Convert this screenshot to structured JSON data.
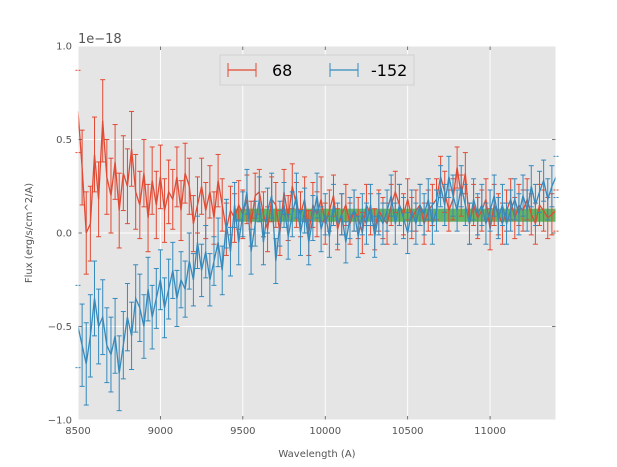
{
  "chart_data": {
    "type": "line",
    "title": "",
    "xlabel": "Wavelength (A)",
    "ylabel": "Flux (erg/s/cm^2/A)",
    "y_offset_label": "1e−18",
    "xlim": [
      8500,
      11400
    ],
    "ylim": [
      -1.0,
      1.0
    ],
    "x_ticks": [
      8500,
      9000,
      9500,
      10000,
      10500,
      11000
    ],
    "x_tick_labels": [
      "8500",
      "9000",
      "9500",
      "10000",
      "10500",
      "11000"
    ],
    "y_ticks": [
      -1.0,
      -0.5,
      0.0,
      0.5,
      1.0
    ],
    "y_tick_labels": [
      "−1.0",
      "−0.5",
      "0.0",
      "0.5",
      "1.0"
    ],
    "grid": true,
    "legend_position": "top-center",
    "band": {
      "x_range": [
        9450,
        11400
      ],
      "y_range": [
        0.06,
        0.13
      ],
      "color": "#2ca02c"
    },
    "series": [
      {
        "name": "68",
        "color": "#e24a33",
        "x": [
          8500,
          8525,
          8550,
          8575,
          8600,
          8625,
          8650,
          8675,
          8700,
          8725,
          8750,
          8775,
          8800,
          8825,
          8850,
          8875,
          8900,
          8925,
          8950,
          8975,
          9000,
          9025,
          9050,
          9075,
          9100,
          9125,
          9150,
          9175,
          9200,
          9225,
          9250,
          9275,
          9300,
          9325,
          9350,
          9375,
          9400,
          9425,
          9450,
          9475,
          9500,
          9525,
          9550,
          9575,
          9600,
          9625,
          9650,
          9675,
          9700,
          9725,
          9750,
          9775,
          9800,
          9825,
          9850,
          9875,
          9900,
          9925,
          9950,
          9975,
          10000,
          10025,
          10050,
          10075,
          10100,
          10125,
          10150,
          10175,
          10200,
          10225,
          10250,
          10275,
          10300,
          10325,
          10350,
          10375,
          10400,
          10425,
          10450,
          10475,
          10500,
          10525,
          10550,
          10575,
          10600,
          10625,
          10650,
          10675,
          10700,
          10725,
          10750,
          10775,
          10800,
          10825,
          10850,
          10875,
          10900,
          10925,
          10950,
          10975,
          11000,
          11025,
          11050,
          11075,
          11100,
          11125,
          11150,
          11175,
          11200,
          11225,
          11250,
          11275,
          11300,
          11325,
          11350,
          11375,
          11400
        ],
        "values": [
          0.65,
          0.35,
          0.0,
          0.05,
          0.42,
          0.18,
          0.6,
          0.3,
          0.2,
          0.38,
          0.12,
          0.32,
          0.25,
          0.45,
          0.22,
          0.15,
          0.32,
          0.08,
          0.28,
          0.15,
          0.3,
          0.12,
          0.22,
          0.18,
          0.3,
          0.12,
          0.32,
          0.25,
          0.05,
          0.15,
          0.25,
          0.12,
          0.22,
          0.08,
          0.28,
          0.15,
          0.02,
          0.12,
          0.08,
          0.15,
          0.1,
          0.18,
          0.05,
          0.2,
          0.22,
          0.1,
          0.02,
          0.18,
          0.15,
          0.0,
          0.22,
          0.08,
          0.25,
          0.15,
          0.1,
          0.18,
          0.0,
          0.15,
          0.1,
          0.18,
          0.05,
          0.12,
          0.2,
          0.02,
          0.1,
          0.15,
          0.05,
          0.12,
          0.08,
          0.0,
          0.15,
          0.1,
          0.02,
          0.12,
          0.08,
          0.05,
          0.15,
          0.22,
          0.15,
          0.1,
          0.18,
          0.08,
          0.12,
          0.15,
          0.05,
          0.12,
          0.15,
          0.18,
          0.3,
          0.22,
          0.12,
          0.18,
          0.35,
          0.2,
          0.32,
          0.05,
          0.15,
          0.08,
          0.12,
          0.18,
          0.02,
          0.15,
          0.1,
          0.05,
          0.12,
          0.18,
          0.08,
          0.15,
          0.12,
          0.18,
          0.1,
          0.05,
          0.15,
          0.12,
          0.08,
          0.1,
          0.12
        ],
        "errors": [
          0.22,
          0.2,
          0.22,
          0.2,
          0.2,
          0.2,
          0.22,
          0.2,
          0.2,
          0.2,
          0.2,
          0.2,
          0.2,
          0.2,
          0.2,
          0.18,
          0.18,
          0.18,
          0.18,
          0.18,
          0.17,
          0.17,
          0.17,
          0.16,
          0.16,
          0.16,
          0.16,
          0.15,
          0.15,
          0.15,
          0.15,
          0.15,
          0.14,
          0.14,
          0.14,
          0.14,
          0.14,
          0.13,
          0.13,
          0.13,
          0.13,
          0.13,
          0.12,
          0.12,
          0.12,
          0.12,
          0.12,
          0.12,
          0.12,
          0.12,
          0.12,
          0.12,
          0.12,
          0.12,
          0.12,
          0.12,
          0.12,
          0.12,
          0.12,
          0.12,
          0.11,
          0.11,
          0.11,
          0.11,
          0.11,
          0.11,
          0.11,
          0.11,
          0.11,
          0.11,
          0.11,
          0.11,
          0.11,
          0.11,
          0.11,
          0.11,
          0.11,
          0.11,
          0.11,
          0.11,
          0.11,
          0.11,
          0.11,
          0.11,
          0.11,
          0.11,
          0.11,
          0.11,
          0.11,
          0.11,
          0.11,
          0.11,
          0.11,
          0.11,
          0.11,
          0.11,
          0.11,
          0.11,
          0.11,
          0.11,
          0.11,
          0.11,
          0.11,
          0.11,
          0.11,
          0.11,
          0.11,
          0.11,
          0.11,
          0.11,
          0.11,
          0.11,
          0.11,
          0.11,
          0.11,
          0.11,
          0.11
        ]
      },
      {
        "name": "-152",
        "color": "#348abd",
        "x": [
          8500,
          8525,
          8550,
          8575,
          8600,
          8625,
          8650,
          8675,
          8700,
          8725,
          8750,
          8775,
          8800,
          8825,
          8850,
          8875,
          8900,
          8925,
          8950,
          8975,
          9000,
          9025,
          9050,
          9075,
          9100,
          9125,
          9150,
          9175,
          9200,
          9225,
          9250,
          9275,
          9300,
          9325,
          9350,
          9375,
          9400,
          9425,
          9450,
          9475,
          9500,
          9525,
          9550,
          9575,
          9600,
          9625,
          9650,
          9675,
          9700,
          9725,
          9750,
          9775,
          9800,
          9825,
          9850,
          9875,
          9900,
          9925,
          9950,
          9975,
          10000,
          10025,
          10050,
          10075,
          10100,
          10125,
          10150,
          10175,
          10200,
          10225,
          10250,
          10275,
          10300,
          10325,
          10350,
          10375,
          10400,
          10425,
          10450,
          10475,
          10500,
          10525,
          10550,
          10575,
          10600,
          10625,
          10650,
          10675,
          10700,
          10725,
          10750,
          10775,
          10800,
          10825,
          10850,
          10875,
          10900,
          10925,
          10950,
          10975,
          11000,
          11025,
          11050,
          11075,
          11100,
          11125,
          11150,
          11175,
          11200,
          11225,
          11250,
          11275,
          11300,
          11325,
          11350,
          11375,
          11400
        ],
        "values": [
          -0.5,
          -0.6,
          -0.7,
          -0.55,
          -0.35,
          -0.5,
          -0.45,
          -0.6,
          -0.65,
          -0.55,
          -0.75,
          -0.6,
          -0.45,
          -0.55,
          -0.35,
          -0.4,
          -0.5,
          -0.3,
          -0.45,
          -0.35,
          -0.25,
          -0.4,
          -0.3,
          -0.2,
          -0.35,
          -0.25,
          -0.3,
          -0.15,
          -0.25,
          -0.05,
          -0.2,
          -0.1,
          -0.25,
          -0.15,
          -0.05,
          -0.2,
          0.05,
          -0.1,
          0.15,
          -0.05,
          0.1,
          0.22,
          -0.1,
          0.05,
          0.18,
          -0.05,
          0.12,
          0.2,
          -0.15,
          0.05,
          0.15,
          -0.02,
          0.1,
          0.2,
          0.0,
          0.12,
          -0.05,
          0.08,
          0.2,
          0.02,
          0.1,
          -0.02,
          0.15,
          0.05,
          0.1,
          -0.05,
          0.08,
          0.12,
          -0.02,
          0.1,
          0.05,
          0.15,
          -0.02,
          0.1,
          0.05,
          0.12,
          0.2,
          0.05,
          0.15,
          0.08,
          0.0,
          0.12,
          0.05,
          0.15,
          0.1,
          0.18,
          0.05,
          0.12,
          0.25,
          0.15,
          0.3,
          0.2,
          0.12,
          0.25,
          0.15,
          0.05,
          0.18,
          0.1,
          0.15,
          0.05,
          0.12,
          0.2,
          0.08,
          0.15,
          0.05,
          0.12,
          0.18,
          0.1,
          0.2,
          0.12,
          0.25,
          0.15,
          0.22,
          0.28,
          0.18,
          0.25,
          0.3
        ],
        "errors": [
          0.22,
          0.22,
          0.22,
          0.22,
          0.2,
          0.2,
          0.2,
          0.2,
          0.2,
          0.2,
          0.2,
          0.18,
          0.18,
          0.18,
          0.18,
          0.18,
          0.17,
          0.17,
          0.17,
          0.16,
          0.16,
          0.16,
          0.16,
          0.15,
          0.15,
          0.15,
          0.15,
          0.15,
          0.14,
          0.14,
          0.14,
          0.14,
          0.14,
          0.13,
          0.13,
          0.13,
          0.13,
          0.13,
          0.12,
          0.12,
          0.12,
          0.12,
          0.12,
          0.12,
          0.12,
          0.12,
          0.12,
          0.12,
          0.12,
          0.12,
          0.12,
          0.12,
          0.12,
          0.12,
          0.12,
          0.12,
          0.12,
          0.12,
          0.12,
          0.12,
          0.11,
          0.11,
          0.11,
          0.11,
          0.11,
          0.11,
          0.11,
          0.11,
          0.11,
          0.11,
          0.11,
          0.11,
          0.11,
          0.11,
          0.11,
          0.11,
          0.11,
          0.11,
          0.11,
          0.11,
          0.11,
          0.11,
          0.11,
          0.11,
          0.11,
          0.11,
          0.11,
          0.11,
          0.11,
          0.11,
          0.11,
          0.11,
          0.11,
          0.11,
          0.11,
          0.11,
          0.11,
          0.11,
          0.11,
          0.11,
          0.11,
          0.11,
          0.11,
          0.11,
          0.11,
          0.11,
          0.11,
          0.11,
          0.11,
          0.11,
          0.11,
          0.11,
          0.11,
          0.11,
          0.11,
          0.11,
          0.11
        ]
      }
    ]
  }
}
